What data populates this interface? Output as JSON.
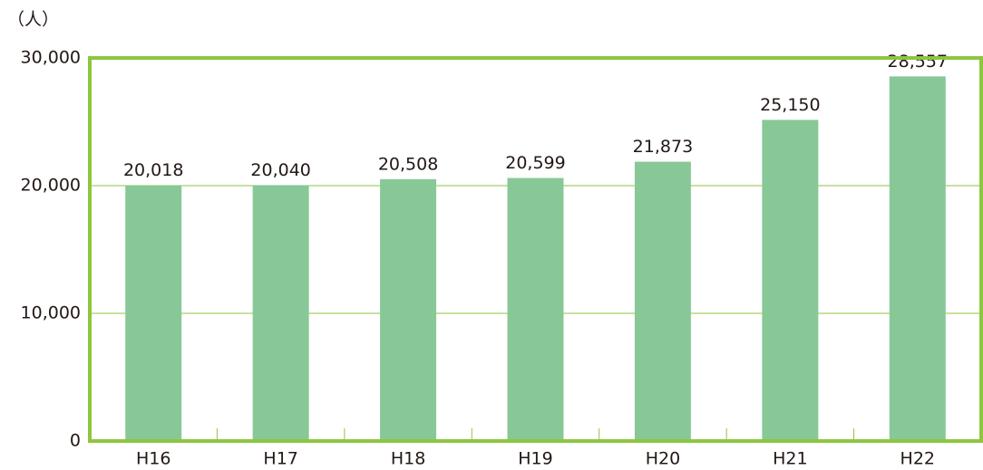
{
  "chart_data": {
    "type": "bar",
    "unit_label": "（人）",
    "categories": [
      "H16",
      "H17",
      "H18",
      "H19",
      "H20",
      "H21",
      "H22"
    ],
    "values": [
      20018,
      20040,
      20508,
      20599,
      21873,
      25150,
      28557
    ],
    "value_labels": [
      "20,018",
      "20,040",
      "20,508",
      "20,599",
      "21,873",
      "25,150",
      "28,557"
    ],
    "color": "#88c897",
    "ylim": [
      0,
      30000
    ],
    "yticks": [
      0,
      {
        "value": 10000,
        "label": "10,000"
      },
      {
        "value": 20000,
        "label": "20,000"
      },
      {
        "value": 30000,
        "label": "30,000"
      }
    ],
    "grid": true,
    "grid_color": "#8dc63f"
  }
}
